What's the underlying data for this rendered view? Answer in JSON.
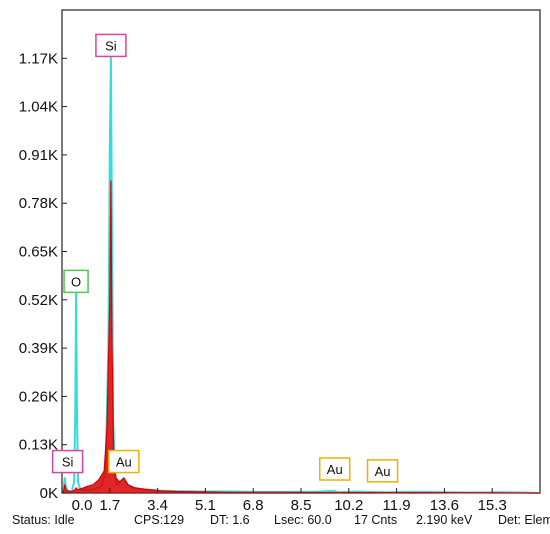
{
  "chart_data": {
    "type": "line",
    "title": "",
    "xlabel": "",
    "ylabel": "",
    "xlim": [
      0,
      17.0
    ],
    "ylim": [
      0,
      1300
    ],
    "grid": false,
    "x_ticks": [
      "0.0",
      "1.7",
      "3.4",
      "5.1",
      "6.8",
      "8.5",
      "10.2",
      "11.9",
      "13.6",
      "15.3"
    ],
    "x_tick_values": [
      0.0,
      1.7,
      3.4,
      5.1,
      6.8,
      8.5,
      10.2,
      11.9,
      13.6,
      15.3
    ],
    "y_ticks": [
      "0K",
      "0.13K",
      "0.26K",
      "0.39K",
      "0.52K",
      "0.65K",
      "0.78K",
      "0.91K",
      "1.04K",
      "1.17K"
    ],
    "y_tick_values": [
      0,
      130,
      260,
      390,
      520,
      650,
      780,
      910,
      1040,
      1170
    ],
    "series": [
      {
        "color": "#33dddd",
        "points": [
          [
            0.0,
            0
          ],
          [
            0.05,
            8
          ],
          [
            0.1,
            40
          ],
          [
            0.13,
            18
          ],
          [
            0.2,
            6
          ],
          [
            0.35,
            5
          ],
          [
            0.43,
            30
          ],
          [
            0.47,
            200
          ],
          [
            0.5,
            540
          ],
          [
            0.53,
            240
          ],
          [
            0.57,
            30
          ],
          [
            0.65,
            10
          ],
          [
            0.8,
            8
          ],
          [
            1.0,
            9
          ],
          [
            1.2,
            12
          ],
          [
            1.4,
            18
          ],
          [
            1.55,
            60
          ],
          [
            1.65,
            400
          ],
          [
            1.7,
            920
          ],
          [
            1.74,
            1180
          ],
          [
            1.78,
            700
          ],
          [
            1.82,
            200
          ],
          [
            1.88,
            50
          ],
          [
            1.95,
            22
          ],
          [
            2.1,
            32
          ],
          [
            2.2,
            40
          ],
          [
            2.3,
            25
          ],
          [
            2.5,
            15
          ],
          [
            2.8,
            10
          ],
          [
            3.2,
            8
          ],
          [
            3.6,
            6
          ],
          [
            4.2,
            5
          ],
          [
            5.0,
            4
          ],
          [
            6.0,
            4
          ],
          [
            7.0,
            3
          ],
          [
            8.0,
            3
          ],
          [
            9.0,
            3
          ],
          [
            9.7,
            6
          ],
          [
            9.8,
            2
          ],
          [
            10.5,
            4
          ],
          [
            11.5,
            2
          ],
          [
            12.5,
            3
          ],
          [
            13.5,
            2
          ],
          [
            14.5,
            1
          ],
          [
            15.5,
            2
          ],
          [
            16.5,
            1
          ],
          [
            17.0,
            0
          ]
        ]
      },
      {
        "color": "#dd0000",
        "points": [
          [
            0.0,
            0
          ],
          [
            0.05,
            4
          ],
          [
            0.1,
            22
          ],
          [
            0.15,
            8
          ],
          [
            0.3,
            3
          ],
          [
            0.45,
            8
          ],
          [
            0.5,
            14
          ],
          [
            0.55,
            9
          ],
          [
            0.7,
            12
          ],
          [
            0.9,
            18
          ],
          [
            1.1,
            22
          ],
          [
            1.3,
            35
          ],
          [
            1.5,
            60
          ],
          [
            1.6,
            180
          ],
          [
            1.7,
            520
          ],
          [
            1.74,
            840
          ],
          [
            1.78,
            400
          ],
          [
            1.84,
            100
          ],
          [
            1.92,
            40
          ],
          [
            2.05,
            30
          ],
          [
            2.2,
            40
          ],
          [
            2.35,
            22
          ],
          [
            2.6,
            14
          ],
          [
            3.0,
            10
          ],
          [
            3.5,
            6
          ],
          [
            4.0,
            4
          ],
          [
            5.0,
            3
          ],
          [
            6.0,
            2
          ],
          [
            8.0,
            2
          ],
          [
            10.0,
            1
          ],
          [
            12.0,
            1
          ],
          [
            14.0,
            1
          ],
          [
            17.0,
            0
          ]
        ]
      }
    ],
    "element_labels": [
      {
        "text": "Si",
        "x": 1.74,
        "y": 1175,
        "color": "#e040a0"
      },
      {
        "text": "O",
        "x": 0.5,
        "y": 540,
        "color": "#50c850"
      },
      {
        "text": "Si",
        "x": 0.2,
        "y": 55,
        "color": "#e040a0"
      },
      {
        "text": "Au",
        "x": 2.2,
        "y": 55,
        "color": "#f0b000"
      },
      {
        "text": "Au",
        "x": 9.7,
        "y": 35,
        "color": "#f0b000"
      },
      {
        "text": "Au",
        "x": 11.4,
        "y": 30,
        "color": "#f0b000"
      }
    ]
  },
  "status": {
    "state": "Status: Idle",
    "cps": "CPS:129",
    "dt": "DT: 1.6",
    "lsec": "Lsec: 60.0",
    "counts": "17 Cnts",
    "energy": "2.190 keV",
    "det": "Det: Element"
  },
  "colors": {
    "axis": "#222222",
    "background": "#ffffff"
  }
}
